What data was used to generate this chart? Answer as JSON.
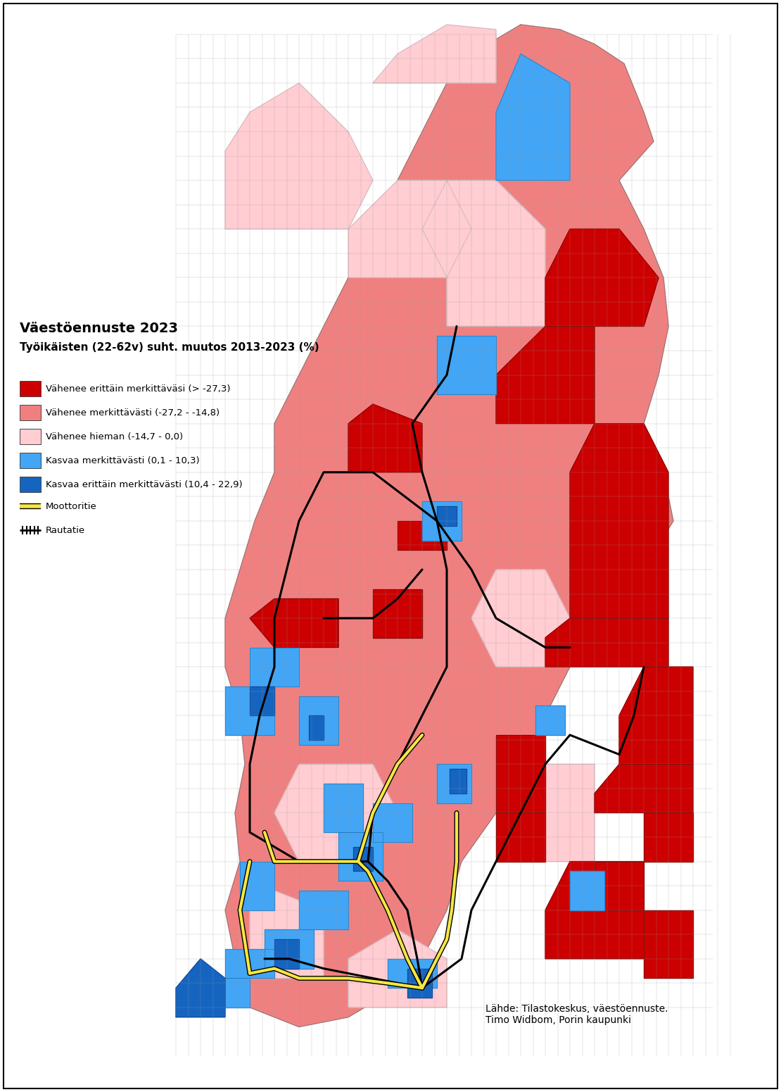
{
  "title_line1": "Väestöennuste 2023",
  "title_line2": "Työikäisten (22-62v) suht. muutos 2013-2023 (%)",
  "legend_items": [
    {
      "label": "Vähenee erittäin merkittäväsi (> -27,3)",
      "color": "#CC0000"
    },
    {
      "label": "Vähenee merkittävästi (-27,2 - -14,8)",
      "color": "#F08080"
    },
    {
      "label": "Vähenee hieman (-14,7 - 0,0)",
      "color": "#FFCDD2"
    },
    {
      "label": "Kasvaa merkittävästi (0,1 - 10,3)",
      "color": "#42A5F5"
    },
    {
      "label": "Kasvaa erittäin merkittävästi (10,4 - 22,9)",
      "color": "#1565C0"
    }
  ],
  "legend_motor": "Moottoritie",
  "legend_rail": "Rautatie",
  "source_text": "Lähde: Tilastokeskus, väestöennuste.\nTimo Widbom, Porin kaupunki",
  "bg_color": "#FFFFFF",
  "colors": {
    "dark_red": "#CC0000",
    "medium_red": "#F08080",
    "light_pink": "#FFCDD2",
    "light_blue": "#42A5F5",
    "dark_blue": "#1565C0"
  }
}
